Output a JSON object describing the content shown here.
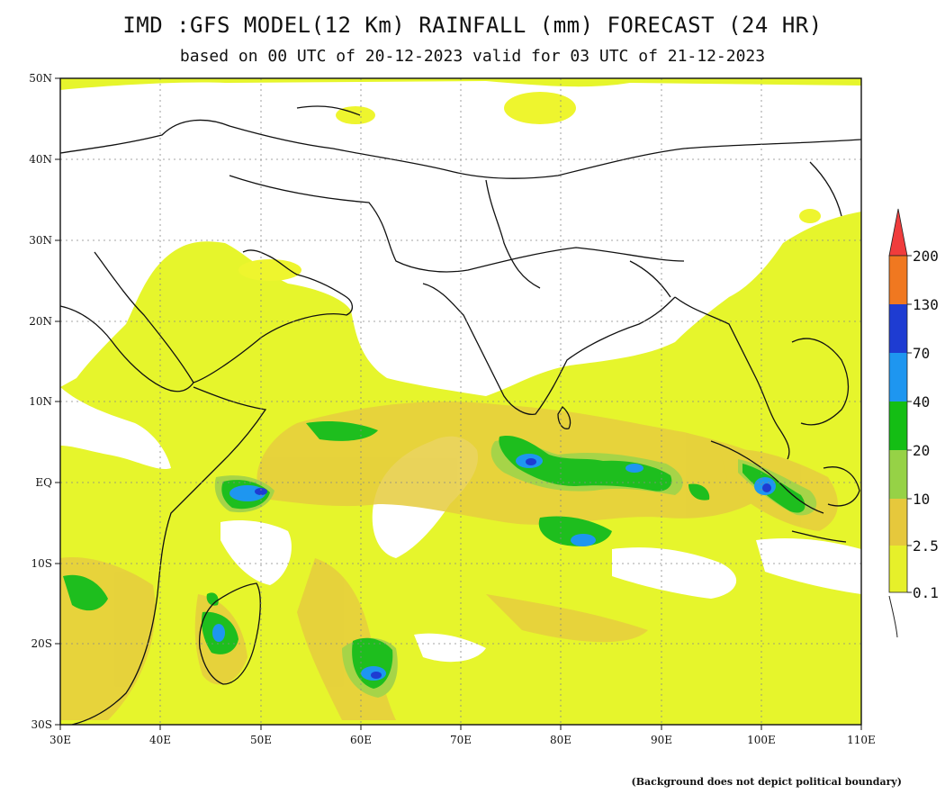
{
  "header": {
    "title": "IMD :GFS MODEL(12 Km) RAINFALL (mm) FORECAST (24 HR)",
    "subtitle": "based on 00 UTC of 20-12-2023 valid for 03 UTC of 21-12-2023"
  },
  "map": {
    "lon_range": [
      30,
      110
    ],
    "lat_range": [
      -30,
      50
    ],
    "lon_ticks": [
      "30E",
      "40E",
      "50E",
      "60E",
      "70E",
      "80E",
      "90E",
      "100E",
      "110E"
    ],
    "lat_ticks": [
      "50N",
      "40N",
      "30N",
      "20N",
      "10N",
      "EQ",
      "10S",
      "20S",
      "30S"
    ],
    "background_color": "#ffffff"
  },
  "legend": {
    "unit": "mm",
    "levels": [
      {
        "label": "200",
        "color": "#f07820"
      },
      {
        "label": "130",
        "color": "#1e3cd2"
      },
      {
        "label": "70",
        "color": "#1e96f0"
      },
      {
        "label": "40",
        "color": "#14be14"
      },
      {
        "label": "20",
        "color": "#96d246"
      },
      {
        "label": "10",
        "color": "#e6c83c"
      },
      {
        "label": "2.5",
        "color": "#e6f02a"
      },
      {
        "label": "0.1",
        "color": ""
      }
    ],
    "over_color": "#f03c3c"
  },
  "footnote": "(Background does not depict political boundary)"
}
